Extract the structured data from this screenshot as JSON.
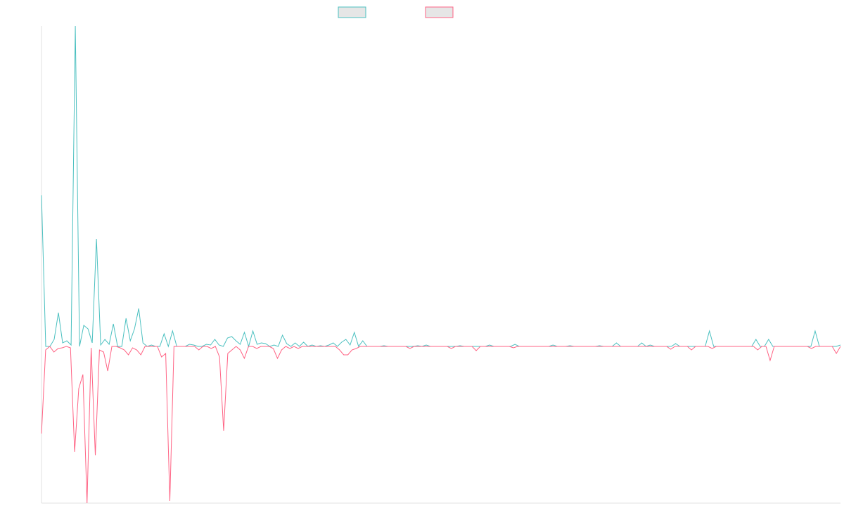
{
  "chart_data": {
    "type": "line",
    "ylim": [
      -223,
      456
    ],
    "legend": "top",
    "series": [
      {
        "color": "#4bc0c0",
        "fill": "#e6e6e6",
        "values": [
          215,
          0,
          0,
          10,
          48,
          5,
          8,
          2,
          456,
          0,
          30,
          25,
          5,
          153,
          2,
          10,
          3,
          32,
          0,
          0,
          40,
          8,
          25,
          54,
          5,
          0,
          2,
          0,
          0,
          18,
          0,
          22,
          0,
          0,
          0,
          3,
          2,
          0,
          0,
          3,
          2,
          10,
          2,
          0,
          12,
          14,
          8,
          3,
          20,
          0,
          22,
          3,
          5,
          4,
          0,
          2,
          0,
          16,
          4,
          0,
          5,
          0,
          6,
          0,
          2,
          0,
          1,
          0,
          2,
          5,
          0,
          6,
          10,
          2,
          20,
          0,
          8,
          0,
          0,
          0,
          0,
          1,
          0,
          0,
          0,
          0,
          0,
          0,
          0,
          1,
          0,
          2,
          0,
          0,
          0,
          0,
          0,
          0,
          0,
          1,
          0,
          0,
          0,
          0,
          0,
          0,
          2,
          0,
          0,
          0,
          0,
          0,
          3,
          0,
          0,
          0,
          0,
          0,
          0,
          0,
          0,
          2,
          0,
          0,
          0,
          1,
          0,
          0,
          0,
          0,
          0,
          0,
          1,
          0,
          0,
          0,
          5,
          0,
          0,
          0,
          0,
          0,
          5,
          0,
          2,
          0,
          0,
          0,
          0,
          0,
          4,
          0,
          0,
          0,
          0,
          0,
          0,
          0,
          22,
          0,
          0,
          0,
          0,
          0,
          0,
          0,
          0,
          0,
          0,
          10,
          0,
          0,
          10,
          0,
          0,
          0,
          0,
          0,
          0,
          0,
          0,
          0,
          0,
          22,
          0,
          0,
          0,
          0,
          0,
          2
        ]
      },
      {
        "color": "#ff6384",
        "fill": "#e6e6e6",
        "values": [
          -124,
          -5,
          0,
          -8,
          -3,
          -2,
          0,
          -2,
          -150,
          -60,
          -40,
          -223,
          -2,
          -155,
          -5,
          -8,
          -35,
          0,
          0,
          -2,
          -5,
          -12,
          -2,
          -5,
          -12,
          0,
          0,
          0,
          0,
          -15,
          -10,
          -220,
          0,
          0,
          0,
          0,
          0,
          0,
          -5,
          0,
          0,
          -3,
          0,
          -15,
          -120,
          -10,
          -5,
          0,
          -5,
          -17,
          0,
          0,
          -3,
          0,
          0,
          0,
          -3,
          -17,
          -5,
          0,
          -3,
          0,
          -3,
          0,
          0,
          0,
          0,
          0,
          0,
          0,
          0,
          0,
          -5,
          -12,
          -12,
          -5,
          -3,
          0,
          0,
          0,
          0,
          0,
          0,
          0,
          0,
          0,
          0,
          0,
          0,
          -3,
          0,
          0,
          0,
          0,
          0,
          0,
          0,
          0,
          0,
          -3,
          0,
          0,
          0,
          0,
          0,
          -6,
          0,
          0,
          0,
          0,
          0,
          0,
          0,
          0,
          -2,
          0,
          0,
          0,
          0,
          0,
          0,
          0,
          0,
          0,
          0,
          0,
          0,
          0,
          0,
          0,
          0,
          0,
          0,
          0,
          0,
          0,
          0,
          0,
          0,
          0,
          0,
          0,
          0,
          0,
          0,
          0,
          0,
          0,
          0,
          0,
          0,
          0,
          -4,
          0,
          0,
          0,
          0,
          -5,
          0,
          0,
          0,
          0,
          -3,
          0,
          0,
          0,
          0,
          0,
          0,
          0,
          0,
          0,
          0,
          -5,
          0,
          0,
          -20,
          0,
          0,
          0,
          0,
          0,
          0,
          0,
          0,
          0,
          -3,
          0,
          0,
          0,
          0,
          0,
          -10,
          0
        ]
      }
    ]
  }
}
